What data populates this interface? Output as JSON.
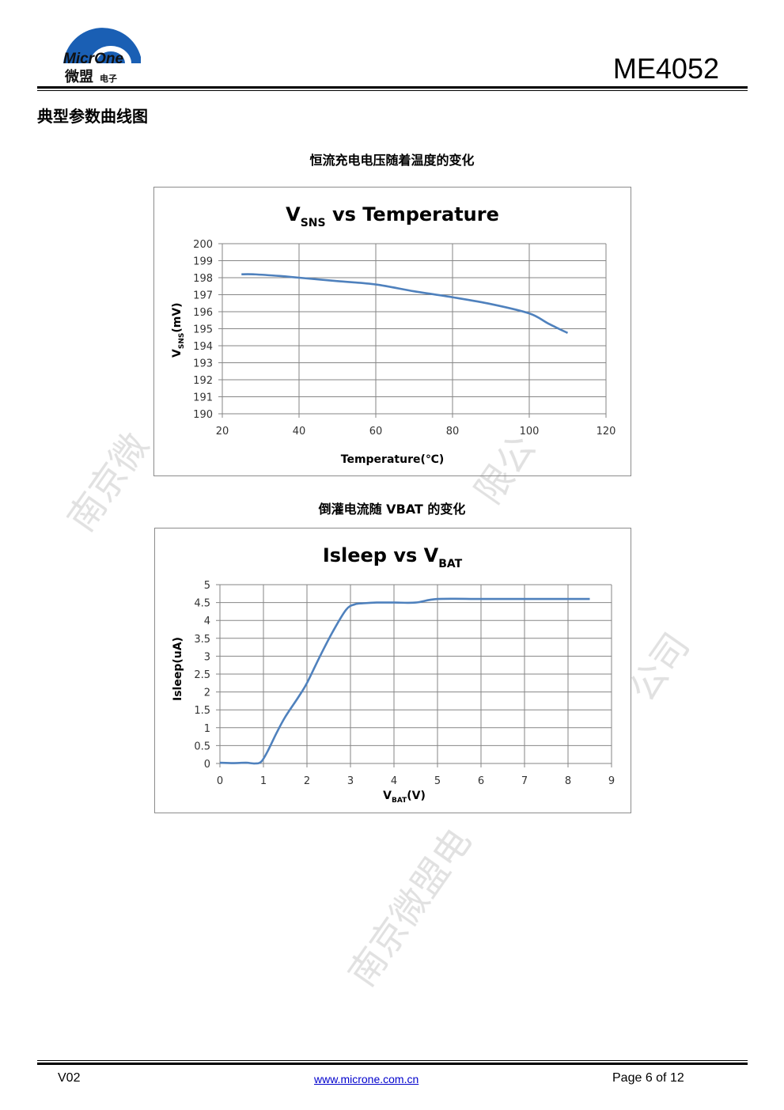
{
  "header": {
    "logo_text_en": "MicrOne",
    "logo_text_cn": "微盟",
    "logo_text_sub": "电子",
    "doc_title": "ME4052"
  },
  "section_title": "典型参数曲线图",
  "watermark_text": [
    "南京微",
    "限公",
    "公司",
    "南京微盟电"
  ],
  "colors": {
    "series": "#4f81bd",
    "grid": "#868686",
    "frame": "#8c8c8c"
  },
  "chart_data": [
    {
      "type": "line",
      "caption": "恒流充电电压随着温度的变化",
      "title_main": "V",
      "title_sub": "SNS",
      "title_rest": " vs Temperature",
      "xlabel": "Temperature(℃)",
      "ylabel_main": "V",
      "ylabel_sub": "SNS",
      "ylabel_rest": "(mV)",
      "xlim": [
        20,
        120
      ],
      "ylim": [
        190,
        200
      ],
      "xticks": [
        20,
        40,
        60,
        80,
        100,
        120
      ],
      "yticks": [
        190,
        191,
        192,
        193,
        194,
        195,
        196,
        197,
        198,
        199,
        200
      ],
      "grid": true,
      "series": [
        {
          "x": [
            25,
            28,
            35,
            40,
            50,
            60,
            70,
            80,
            90,
            100,
            105,
            110
          ],
          "y": [
            198.2,
            198.2,
            198.1,
            198.0,
            197.8,
            197.6,
            197.2,
            196.85,
            196.45,
            195.9,
            195.3,
            194.75
          ]
        }
      ]
    },
    {
      "type": "line",
      "caption": "倒灌电流随 VBAT 的变化",
      "title_main": "Isleep vs V",
      "title_sub": "BAT",
      "title_rest": "",
      "xlabel_main": "V",
      "xlabel_sub": "BAT",
      "xlabel_rest": "(V)",
      "ylabel": "Isleep(uA)",
      "xlim": [
        0,
        9
      ],
      "ylim": [
        0,
        5
      ],
      "xticks": [
        "0",
        "1",
        "2",
        "3",
        "4",
        "5",
        "6",
        "7",
        "8",
        "9"
      ],
      "yticks": [
        "0",
        "0.5",
        "1",
        "1.5",
        "2",
        "2.5",
        "3",
        "3.5",
        "4",
        "4.5",
        "5"
      ],
      "grid": true,
      "series": [
        {
          "x": [
            0,
            0.3,
            0.6,
            0.8,
            0.95,
            1.1,
            1.3,
            1.5,
            1.8,
            2.0,
            2.3,
            2.6,
            2.9,
            3.1,
            3.3,
            3.6,
            4.0,
            4.5,
            5.0,
            6.0,
            7.0,
            8.0,
            8.5
          ],
          "y": [
            0.02,
            0.01,
            0.02,
            0.0,
            0.05,
            0.35,
            0.85,
            1.3,
            1.85,
            2.25,
            3.0,
            3.7,
            4.3,
            4.45,
            4.48,
            4.5,
            4.5,
            4.5,
            4.6,
            4.6,
            4.6,
            4.6,
            4.6
          ]
        }
      ]
    }
  ],
  "footer": {
    "version": "V02",
    "url": "www.microne.com.cn",
    "page": "Page 6 of 12"
  }
}
